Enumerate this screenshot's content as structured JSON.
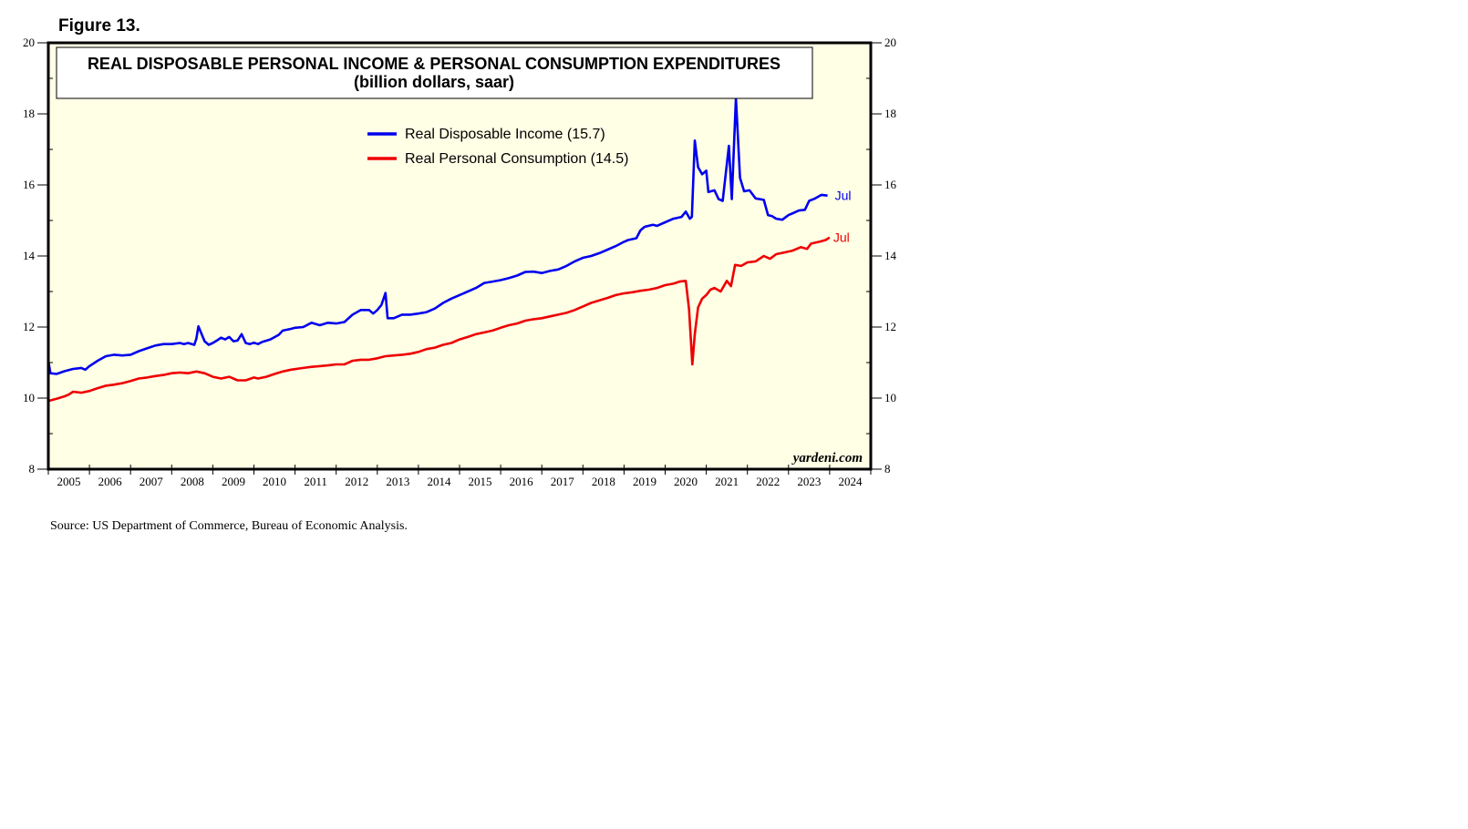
{
  "figure_label": "Figure 13.",
  "source": "Source: US Department of Commerce, Bureau of Economic Analysis.",
  "watermark": "yardeni.com",
  "colors": {
    "plot_bg": "#ffffe6",
    "income": "#0000ee",
    "consumption": "#ee0000"
  },
  "chart_data": {
    "type": "line",
    "title": "REAL DISPOSABLE PERSONAL INCOME & PERSONAL CONSUMPTION EXPENDITURES",
    "subtitle": "(billion dollars, saar)",
    "xlabel": "",
    "ylabel": "",
    "xlim": [
      2005.0,
      2025.0
    ],
    "ylim": [
      8,
      20
    ],
    "yticks": [
      8,
      10,
      12,
      14,
      16,
      18,
      20
    ],
    "xtick_labels": [
      "2005",
      "2006",
      "2007",
      "2008",
      "2009",
      "2010",
      "2011",
      "2012",
      "2013",
      "2014",
      "2015",
      "2016",
      "2017",
      "2018",
      "2019",
      "2020",
      "2021",
      "2022",
      "2023",
      "2024"
    ],
    "legend_position": "top-center",
    "series": [
      {
        "name": "Real Disposable Income",
        "legend_label": "Real Disposable Income (15.7)",
        "end_label": "Jul",
        "color": "#0000ee",
        "points": [
          [
            2005.0,
            11.05
          ],
          [
            2005.05,
            10.7
          ],
          [
            2005.2,
            10.68
          ],
          [
            2005.4,
            10.76
          ],
          [
            2005.6,
            10.82
          ],
          [
            2005.8,
            10.85
          ],
          [
            2005.9,
            10.8
          ],
          [
            2006.0,
            10.9
          ],
          [
            2006.2,
            11.05
          ],
          [
            2006.4,
            11.18
          ],
          [
            2006.6,
            11.22
          ],
          [
            2006.8,
            11.2
          ],
          [
            2007.0,
            11.22
          ],
          [
            2007.2,
            11.32
          ],
          [
            2007.4,
            11.4
          ],
          [
            2007.6,
            11.48
          ],
          [
            2007.8,
            11.52
          ],
          [
            2008.0,
            11.52
          ],
          [
            2008.2,
            11.55
          ],
          [
            2008.3,
            11.52
          ],
          [
            2008.4,
            11.55
          ],
          [
            2008.55,
            11.5
          ],
          [
            2008.6,
            11.68
          ],
          [
            2008.65,
            12.02
          ],
          [
            2008.7,
            11.88
          ],
          [
            2008.8,
            11.6
          ],
          [
            2008.9,
            11.5
          ],
          [
            2009.0,
            11.55
          ],
          [
            2009.1,
            11.62
          ],
          [
            2009.2,
            11.7
          ],
          [
            2009.3,
            11.65
          ],
          [
            2009.4,
            11.72
          ],
          [
            2009.5,
            11.6
          ],
          [
            2009.6,
            11.62
          ],
          [
            2009.7,
            11.8
          ],
          [
            2009.8,
            11.55
          ],
          [
            2009.9,
            11.52
          ],
          [
            2010.0,
            11.56
          ],
          [
            2010.1,
            11.52
          ],
          [
            2010.2,
            11.58
          ],
          [
            2010.4,
            11.65
          ],
          [
            2010.6,
            11.78
          ],
          [
            2010.7,
            11.9
          ],
          [
            2010.9,
            11.95
          ],
          [
            2011.0,
            11.98
          ],
          [
            2011.2,
            12.0
          ],
          [
            2011.4,
            12.12
          ],
          [
            2011.6,
            12.05
          ],
          [
            2011.8,
            12.12
          ],
          [
            2012.0,
            12.1
          ],
          [
            2012.2,
            12.14
          ],
          [
            2012.4,
            12.35
          ],
          [
            2012.6,
            12.48
          ],
          [
            2012.8,
            12.48
          ],
          [
            2012.9,
            12.38
          ],
          [
            2013.0,
            12.48
          ],
          [
            2013.1,
            12.62
          ],
          [
            2013.2,
            12.96
          ],
          [
            2013.25,
            12.25
          ],
          [
            2013.4,
            12.25
          ],
          [
            2013.6,
            12.35
          ],
          [
            2013.8,
            12.35
          ],
          [
            2014.0,
            12.38
          ],
          [
            2014.2,
            12.42
          ],
          [
            2014.4,
            12.52
          ],
          [
            2014.6,
            12.68
          ],
          [
            2014.8,
            12.8
          ],
          [
            2015.0,
            12.9
          ],
          [
            2015.2,
            13.0
          ],
          [
            2015.4,
            13.1
          ],
          [
            2015.6,
            13.24
          ],
          [
            2015.8,
            13.28
          ],
          [
            2016.0,
            13.32
          ],
          [
            2016.2,
            13.38
          ],
          [
            2016.4,
            13.45
          ],
          [
            2016.6,
            13.55
          ],
          [
            2016.8,
            13.56
          ],
          [
            2017.0,
            13.52
          ],
          [
            2017.2,
            13.58
          ],
          [
            2017.4,
            13.62
          ],
          [
            2017.6,
            13.72
          ],
          [
            2017.8,
            13.85
          ],
          [
            2018.0,
            13.95
          ],
          [
            2018.2,
            14.0
          ],
          [
            2018.4,
            14.08
          ],
          [
            2018.6,
            14.18
          ],
          [
            2018.8,
            14.28
          ],
          [
            2019.0,
            14.4
          ],
          [
            2019.1,
            14.45
          ],
          [
            2019.3,
            14.5
          ],
          [
            2019.4,
            14.72
          ],
          [
            2019.5,
            14.82
          ],
          [
            2019.7,
            14.88
          ],
          [
            2019.8,
            14.85
          ],
          [
            2020.0,
            14.95
          ],
          [
            2020.2,
            15.05
          ],
          [
            2020.4,
            15.1
          ],
          [
            2020.5,
            15.25
          ],
          [
            2020.6,
            15.05
          ],
          [
            2020.65,
            15.1
          ],
          [
            2020.72,
            17.25
          ],
          [
            2020.8,
            16.5
          ],
          [
            2020.9,
            16.3
          ],
          [
            2021.0,
            16.4
          ],
          [
            2021.05,
            15.8
          ],
          [
            2021.2,
            15.85
          ],
          [
            2021.3,
            15.6
          ],
          [
            2021.4,
            15.55
          ],
          [
            2021.55,
            17.1
          ],
          [
            2021.62,
            15.6
          ],
          [
            2021.72,
            18.45
          ],
          [
            2021.82,
            16.2
          ],
          [
            2021.92,
            15.82
          ],
          [
            2022.05,
            15.85
          ],
          [
            2022.2,
            15.62
          ],
          [
            2022.4,
            15.58
          ],
          [
            2022.5,
            15.15
          ],
          [
            2022.6,
            15.12
          ],
          [
            2022.7,
            15.05
          ],
          [
            2022.85,
            15.02
          ],
          [
            2023.0,
            15.15
          ],
          [
            2023.1,
            15.2
          ],
          [
            2023.25,
            15.28
          ],
          [
            2023.4,
            15.3
          ],
          [
            2023.5,
            15.55
          ],
          [
            2023.65,
            15.62
          ],
          [
            2023.8,
            15.72
          ],
          [
            2023.95,
            15.7
          ]
        ]
      },
      {
        "name": "Real Personal Consumption",
        "legend_label": "Real Personal Consumption (14.5)",
        "end_label": "Jul",
        "color": "#ee0000",
        "points": [
          [
            2005.0,
            9.92
          ],
          [
            2005.2,
            9.98
          ],
          [
            2005.4,
            10.05
          ],
          [
            2005.5,
            10.1
          ],
          [
            2005.6,
            10.18
          ],
          [
            2005.8,
            10.15
          ],
          [
            2006.0,
            10.2
          ],
          [
            2006.2,
            10.28
          ],
          [
            2006.4,
            10.35
          ],
          [
            2006.6,
            10.38
          ],
          [
            2006.8,
            10.42
          ],
          [
            2007.0,
            10.48
          ],
          [
            2007.2,
            10.55
          ],
          [
            2007.4,
            10.58
          ],
          [
            2007.6,
            10.62
          ],
          [
            2007.8,
            10.65
          ],
          [
            2008.0,
            10.7
          ],
          [
            2008.2,
            10.72
          ],
          [
            2008.4,
            10.7
          ],
          [
            2008.6,
            10.75
          ],
          [
            2008.8,
            10.7
          ],
          [
            2009.0,
            10.6
          ],
          [
            2009.2,
            10.55
          ],
          [
            2009.4,
            10.6
          ],
          [
            2009.6,
            10.5
          ],
          [
            2009.8,
            10.5
          ],
          [
            2010.0,
            10.58
          ],
          [
            2010.1,
            10.55
          ],
          [
            2010.3,
            10.6
          ],
          [
            2010.5,
            10.68
          ],
          [
            2010.7,
            10.75
          ],
          [
            2010.9,
            10.8
          ],
          [
            2011.2,
            10.85
          ],
          [
            2011.4,
            10.88
          ],
          [
            2011.6,
            10.9
          ],
          [
            2011.8,
            10.92
          ],
          [
            2012.0,
            10.95
          ],
          [
            2012.2,
            10.95
          ],
          [
            2012.4,
            11.05
          ],
          [
            2012.6,
            11.08
          ],
          [
            2012.8,
            11.08
          ],
          [
            2013.0,
            11.12
          ],
          [
            2013.2,
            11.18
          ],
          [
            2013.4,
            11.2
          ],
          [
            2013.6,
            11.22
          ],
          [
            2013.8,
            11.25
          ],
          [
            2014.0,
            11.3
          ],
          [
            2014.2,
            11.38
          ],
          [
            2014.4,
            11.42
          ],
          [
            2014.6,
            11.5
          ],
          [
            2014.8,
            11.55
          ],
          [
            2015.0,
            11.65
          ],
          [
            2015.2,
            11.72
          ],
          [
            2015.4,
            11.8
          ],
          [
            2015.6,
            11.85
          ],
          [
            2015.8,
            11.9
          ],
          [
            2016.0,
            11.98
          ],
          [
            2016.2,
            12.05
          ],
          [
            2016.4,
            12.1
          ],
          [
            2016.6,
            12.18
          ],
          [
            2016.8,
            12.22
          ],
          [
            2017.0,
            12.25
          ],
          [
            2017.2,
            12.3
          ],
          [
            2017.4,
            12.35
          ],
          [
            2017.6,
            12.4
          ],
          [
            2017.8,
            12.48
          ],
          [
            2018.0,
            12.58
          ],
          [
            2018.2,
            12.68
          ],
          [
            2018.4,
            12.75
          ],
          [
            2018.6,
            12.82
          ],
          [
            2018.8,
            12.9
          ],
          [
            2019.0,
            12.95
          ],
          [
            2019.2,
            12.98
          ],
          [
            2019.4,
            13.02
          ],
          [
            2019.6,
            13.05
          ],
          [
            2019.8,
            13.1
          ],
          [
            2020.0,
            13.18
          ],
          [
            2020.2,
            13.22
          ],
          [
            2020.35,
            13.28
          ],
          [
            2020.5,
            13.3
          ],
          [
            2020.58,
            12.5
          ],
          [
            2020.66,
            10.95
          ],
          [
            2020.72,
            11.8
          ],
          [
            2020.8,
            12.55
          ],
          [
            2020.9,
            12.8
          ],
          [
            2021.0,
            12.9
          ],
          [
            2021.1,
            13.05
          ],
          [
            2021.2,
            13.1
          ],
          [
            2021.35,
            13.0
          ],
          [
            2021.5,
            13.3
          ],
          [
            2021.6,
            13.15
          ],
          [
            2021.7,
            13.75
          ],
          [
            2021.85,
            13.72
          ],
          [
            2022.0,
            13.82
          ],
          [
            2022.2,
            13.85
          ],
          [
            2022.4,
            14.0
          ],
          [
            2022.55,
            13.92
          ],
          [
            2022.7,
            14.05
          ],
          [
            2022.9,
            14.1
          ],
          [
            2023.1,
            14.15
          ],
          [
            2023.3,
            14.25
          ],
          [
            2023.45,
            14.2
          ],
          [
            2023.55,
            14.35
          ],
          [
            2023.75,
            14.4
          ],
          [
            2023.9,
            14.45
          ],
          [
            2024.0,
            14.52
          ]
        ]
      }
    ]
  }
}
